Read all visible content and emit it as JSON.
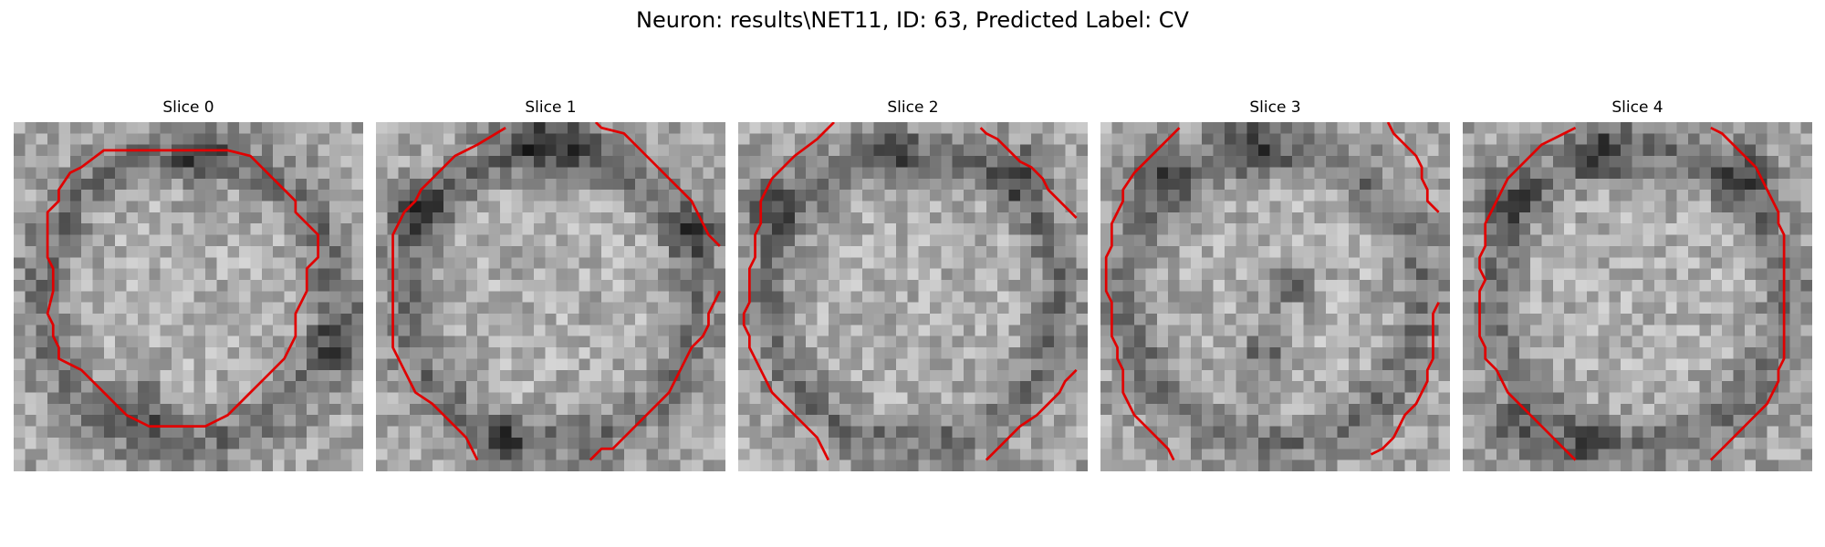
{
  "figure": {
    "title": "Neuron: results\\NET11, ID: 63, Predicted Label: CV"
  },
  "panels": [
    {
      "title": "Slice 0",
      "seed": 11
    },
    {
      "title": "Slice 1",
      "seed": 23
    },
    {
      "title": "Slice 2",
      "seed": 37
    },
    {
      "title": "Slice 3",
      "seed": 41
    },
    {
      "title": "Slice 4",
      "seed": 59
    }
  ],
  "contour_color": "#e00000"
}
